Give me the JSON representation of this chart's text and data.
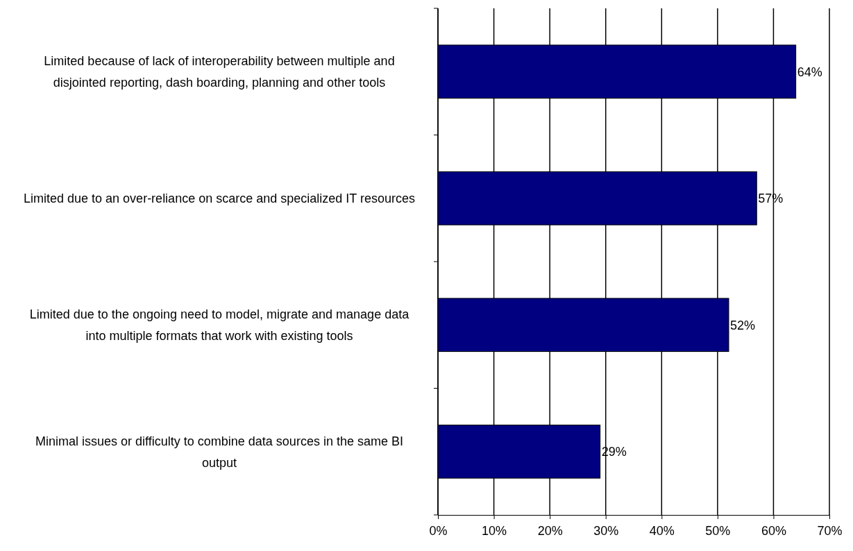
{
  "chart_data": {
    "type": "bar",
    "orientation": "horizontal",
    "categories": [
      "Limited because of lack of interoperability between multiple and disjointed reporting, dash boarding, planning and other tools",
      "Limited due to an over-reliance on scarce and specialized IT resources",
      "Limited due to the ongoing need to model, migrate and manage data into multiple formats that work with existing tools",
      "Minimal issues or difficulty to combine data sources in the same BI output"
    ],
    "values": [
      64,
      57,
      52,
      29
    ],
    "value_labels": [
      "64%",
      "57%",
      "52%",
      "29%"
    ],
    "color": "#000080",
    "xlim": [
      0,
      70
    ],
    "xticks": [
      {
        "value": 0,
        "label": "0%"
      },
      {
        "value": 10,
        "label": "10%"
      },
      {
        "value": 20,
        "label": "20%"
      },
      {
        "value": 30,
        "label": "30%"
      },
      {
        "value": 40,
        "label": "40%"
      },
      {
        "value": 50,
        "label": "50%"
      },
      {
        "value": 60,
        "label": "60%"
      },
      {
        "value": 70,
        "label": "70%"
      }
    ],
    "grid": "x"
  }
}
